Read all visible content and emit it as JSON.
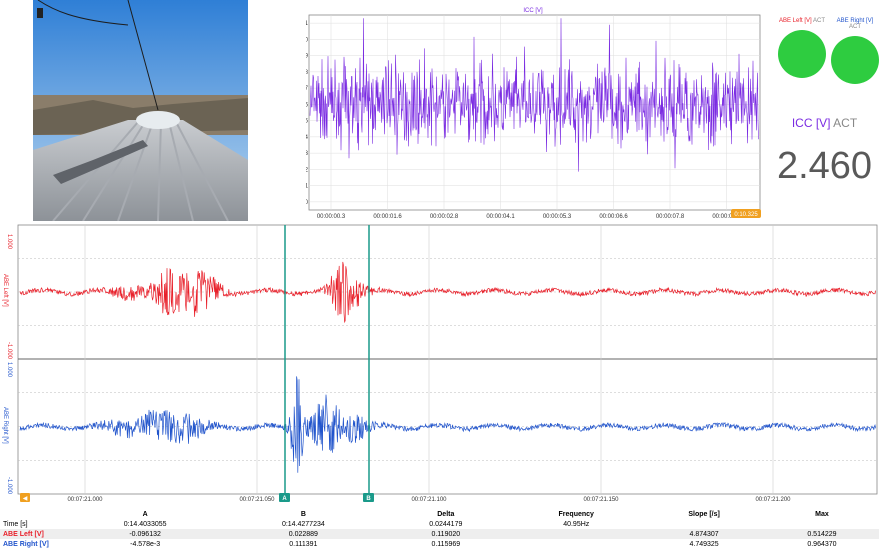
{
  "photo": {
    "subject": "train-roof-camera-view"
  },
  "top_chart": {
    "title": "ICC [V]",
    "series_color": "#7a2be2",
    "time_badge": "0:10.325"
  },
  "indicators": [
    {
      "name": "ABE Left [V]",
      "tag": "ACT",
      "name_color": "#e8202a",
      "lamp_color": "#2ecc40"
    },
    {
      "name": "ABE Right [V]",
      "tag": "ACT",
      "name_color": "#2255cc",
      "lamp_color": "#2ecc40"
    }
  ],
  "big_readout": {
    "channel": "ICC [V]",
    "tag": "ACT",
    "channel_color": "#7a2be2",
    "value": "2.460"
  },
  "bottom_chart": {
    "cursor_a_label": "A",
    "cursor_b_label": "B",
    "cursor_color": "#1a9a8a"
  },
  "chart_data": [
    {
      "type": "line",
      "title": "ICC [V]",
      "ylim": [
        2.395,
        2.515
      ],
      "yticks": [
        "2.51",
        "2.50",
        "2.49",
        "2.48",
        "2.47",
        "2.46",
        "2.45",
        "2.44",
        "2.43",
        "2.42",
        "2.41",
        "2.40"
      ],
      "xticks": [
        "00:00:00.3",
        "00:00:01.6",
        "00:00:02.8",
        "00:00:04.1",
        "00:00:05.3",
        "00:00:06.6",
        "00:00:07.8",
        "00:00:09.1"
      ],
      "series": [
        {
          "name": "ICC [V]",
          "mean": 2.46,
          "color": "#7a2be2"
        }
      ],
      "grid": true
    },
    {
      "type": "line",
      "ylabel": "ABE Left [V]",
      "ylim": [
        -1.0,
        1.0
      ],
      "yticks": [
        "1.000",
        "-1.000"
      ],
      "xticks": [
        "00:07:21.000",
        "00:07:21.050",
        "00:07:21.100",
        "00:07:21.150",
        "00:07:21.200"
      ],
      "series": [
        {
          "name": "ABE Left [V]",
          "color": "#e8202a"
        }
      ],
      "grid": true
    },
    {
      "type": "line",
      "ylabel": "ABE Right [V]",
      "ylim": [
        -1.0,
        1.0
      ],
      "yticks": [
        "1.000",
        "-1.000"
      ],
      "xticks": [
        "00:07:21.000",
        "00:07:21.050",
        "00:07:21.100",
        "00:07:21.150",
        "00:07:21.200"
      ],
      "series": [
        {
          "name": "ABE Right [V]",
          "color": "#2255cc"
        }
      ],
      "grid": true
    }
  ],
  "cursor_table": {
    "headers": [
      "",
      "A",
      "B",
      "Delta",
      "Frequency",
      "Slope [/s]",
      "Max"
    ],
    "rows": [
      {
        "label": "Time [s]",
        "color": "#000000",
        "cells": [
          "0:14.4033055",
          "0:14.4277234",
          "0.0244179",
          "40.95Hz",
          "",
          ""
        ]
      },
      {
        "label": "ABE Left [V]",
        "color": "#e8202a",
        "cells": [
          "-0.096132",
          "0.022889",
          "0.119020",
          "",
          "4.874307",
          "0.514229"
        ]
      },
      {
        "label": "ABE Right [V]",
        "color": "#2255cc",
        "cells": [
          "-4.578e-3",
          "0.111391",
          "0.115969",
          "",
          "4.749325",
          "0.964370"
        ]
      }
    ]
  }
}
